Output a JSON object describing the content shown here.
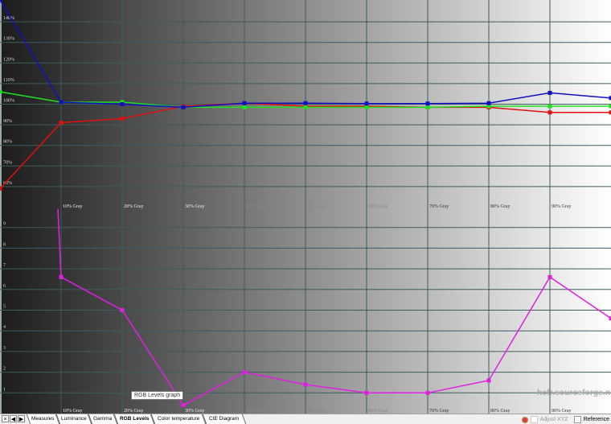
{
  "chart_data": [
    {
      "type": "line",
      "x": [
        "0%",
        "10%",
        "20%",
        "30%",
        "40%",
        "50%",
        "60%",
        "70%",
        "80%",
        "90%",
        "100%"
      ],
      "tick_labels_x": [
        "10% Gray",
        "20% Gray",
        "30% Gray",
        "40% Gray",
        "50% Gray",
        "60% Gray",
        "70% Gray",
        "80% Gray",
        "90% Gray"
      ],
      "tick_labels_y": [
        "60%",
        "70%",
        "80%",
        "90%",
        "100%",
        "110%",
        "120%",
        "130%",
        "140%"
      ],
      "ylim": [
        52,
        150
      ],
      "grid": true,
      "series": [
        {
          "color": "#e01010",
          "values": [
            59,
            91,
            93,
            99,
            100.5,
            99,
            99,
            98.5,
            98.5,
            96,
            96
          ]
        },
        {
          "color": "#20e020",
          "values": [
            106,
            101,
            101,
            98.5,
            98.5,
            98.5,
            98.5,
            98.5,
            99,
            99,
            99
          ]
        },
        {
          "color": "#1010c0",
          "values": [
            152,
            101,
            100,
            98.5,
            100.5,
            100.5,
            100.3,
            100.3,
            100.5,
            105.5,
            103
          ]
        }
      ]
    },
    {
      "type": "line",
      "x": [
        "0%",
        "10%",
        "20%",
        "30%",
        "40%",
        "50%",
        "60%",
        "70%",
        "80%",
        "90%",
        "100%"
      ],
      "tick_labels_x": [
        "10% Gray",
        "20% Gray",
        "30% Gray",
        "40% Gray",
        "50% Gray",
        "60% Gray",
        "70% Gray",
        "80% Gray",
        "90% Gray"
      ],
      "tick_labels_y": [
        "1",
        "2",
        "3",
        "4",
        "5",
        "6",
        "7",
        "8",
        "9"
      ],
      "ylim": [
        0,
        10.2
      ],
      "grid": true,
      "series": [
        {
          "color": "#e020e0",
          "values": [
            9.9,
            6.6,
            5.0,
            0.4,
            2.0,
            1.4,
            1.0,
            1.0,
            1.6,
            6.6,
            4.6
          ]
        }
      ]
    }
  ],
  "watermark": "hcfr.sourceforge.net",
  "tabs": {
    "close": "×",
    "prev": "◀",
    "next": "▶",
    "items": [
      "Measures",
      "Luminance",
      "Gamma",
      "RGB Levels",
      "Color temperature",
      "CIE Diagram"
    ],
    "active": 3
  },
  "tooltip": "RGB Levels graph",
  "controls": {
    "adjust_xyz": "Adjust XYZ",
    "reference": "Reference"
  }
}
